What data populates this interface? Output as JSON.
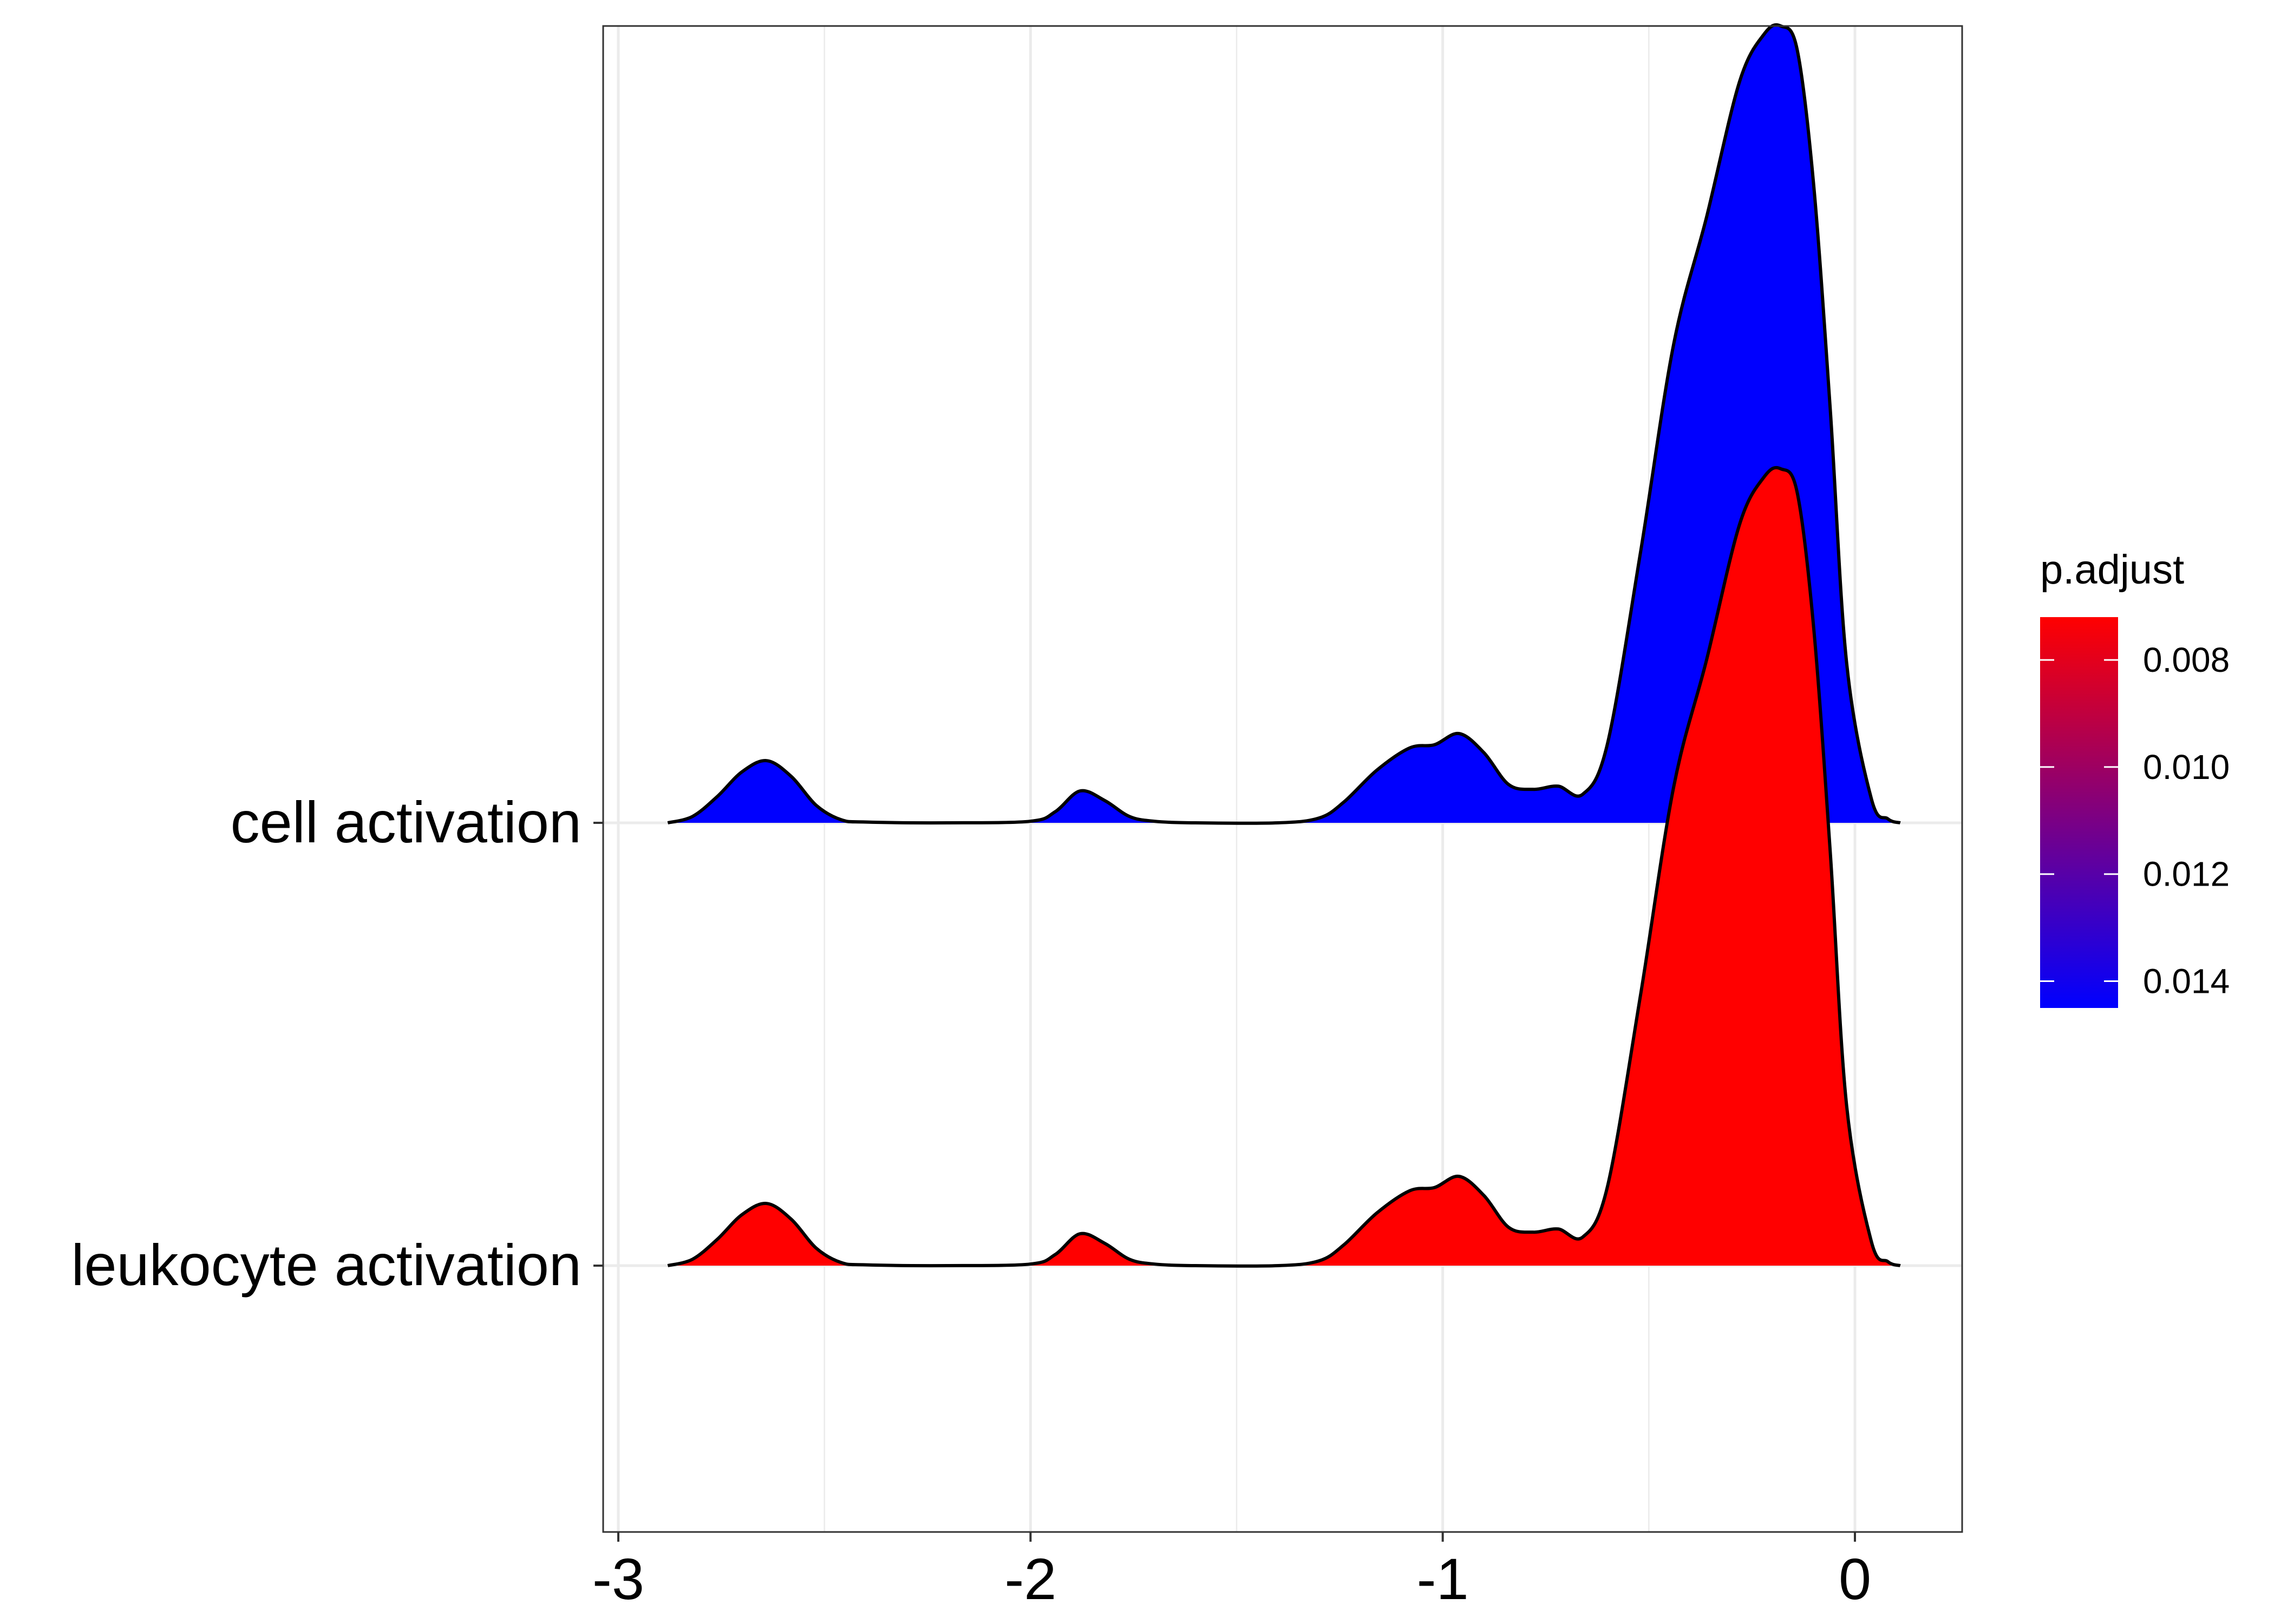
{
  "chart_data": {
    "type": "ridgeline",
    "title": "",
    "xlabel": "",
    "ylabel": "",
    "xlim": [
      -2.95,
      0.26
    ],
    "x_ticks": [
      -3,
      -2,
      -1,
      0
    ],
    "x_tick_labels": [
      "-3",
      "-2",
      "-1",
      "0"
    ],
    "categories": [
      "cell activation",
      "leukocyte activation"
    ],
    "x": [
      -2.88,
      -2.82,
      -2.76,
      -2.7,
      -2.64,
      -2.58,
      -2.52,
      -2.46,
      -2.4,
      -2.2,
      -2.0,
      -1.94,
      -1.88,
      -1.82,
      -1.76,
      -1.7,
      -1.6,
      -1.4,
      -1.3,
      -1.24,
      -1.16,
      -1.08,
      -1.02,
      -0.96,
      -0.9,
      -0.84,
      -0.78,
      -0.72,
      -0.66,
      -0.6,
      -0.52,
      -0.44,
      -0.36,
      -0.28,
      -0.22,
      -0.18,
      -0.14,
      -0.1,
      -0.06,
      -0.02,
      0.04,
      0.08,
      0.11
    ],
    "grid": true,
    "legend_position": "right",
    "series": [
      {
        "name": "cell activation",
        "color": "#0000FF",
        "p_adjust": 0.0144,
        "density": [
          0.0,
          0.008,
          0.033,
          0.064,
          0.078,
          0.058,
          0.022,
          0.004,
          0.001,
          0.0,
          0.002,
          0.014,
          0.04,
          0.028,
          0.008,
          0.002,
          0.0,
          0.0,
          0.006,
          0.026,
          0.066,
          0.094,
          0.098,
          0.112,
          0.088,
          0.048,
          0.042,
          0.046,
          0.036,
          0.1,
          0.34,
          0.6,
          0.76,
          0.93,
          0.99,
          1.0,
          0.97,
          0.8,
          0.52,
          0.2,
          0.03,
          0.005,
          0.0
        ]
      },
      {
        "name": "leukocyte activation",
        "color": "#FF0000",
        "p_adjust": 0.0073,
        "density": [
          0.0,
          0.008,
          0.033,
          0.064,
          0.078,
          0.058,
          0.022,
          0.004,
          0.001,
          0.0,
          0.002,
          0.014,
          0.04,
          0.028,
          0.008,
          0.002,
          0.0,
          0.0,
          0.006,
          0.026,
          0.066,
          0.094,
          0.098,
          0.112,
          0.088,
          0.048,
          0.042,
          0.046,
          0.036,
          0.1,
          0.34,
          0.6,
          0.76,
          0.93,
          0.99,
          1.0,
          0.97,
          0.8,
          0.52,
          0.2,
          0.03,
          0.005,
          0.0
        ]
      }
    ],
    "legend": {
      "title": "p.adjust",
      "gradient_colors": [
        "#FF0000",
        "#0000FF"
      ],
      "range": [
        0.0072,
        0.0145
      ],
      "ticks": [
        0.008,
        0.01,
        0.012,
        0.014
      ],
      "tick_labels": [
        "0.008",
        "0.010",
        "0.012",
        "0.014"
      ]
    }
  }
}
